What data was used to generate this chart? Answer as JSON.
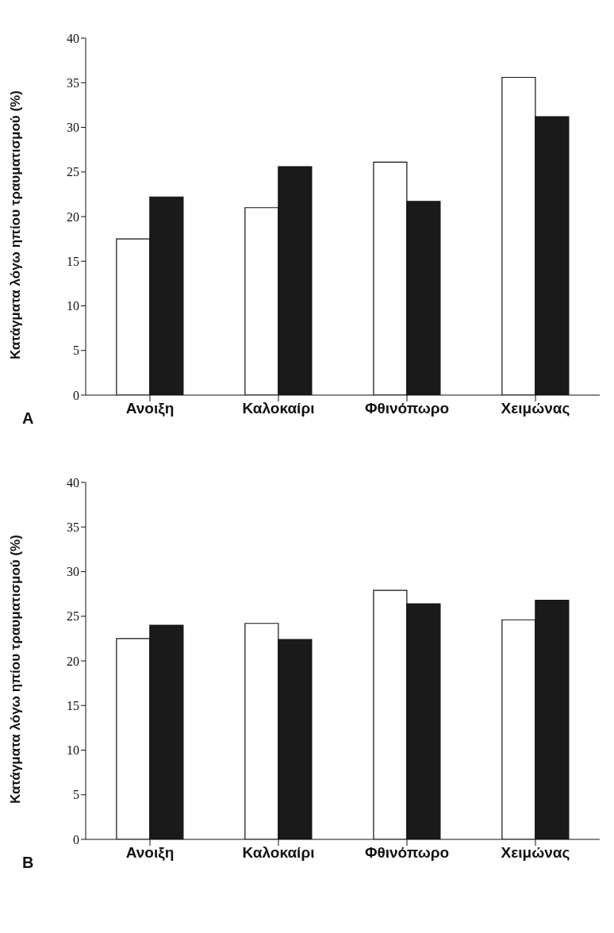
{
  "chart_data": [
    {
      "type": "bar",
      "ylabel": "Κατάγματα λόγω ηπίου τραυματισμού (%)",
      "annotations": [
        "A"
      ],
      "categories": [
        "Ανοιξη",
        "Καλοκαίρι",
        "Φθινόπωρο",
        "Χειμώνας"
      ],
      "series": [
        {
          "color": "#ffffff",
          "values": [
            17.5,
            21.0,
            26.1,
            35.6
          ]
        },
        {
          "color": "#1a1a1a",
          "values": [
            22.2,
            25.6,
            21.7,
            31.2
          ]
        }
      ],
      "ylim": [
        0,
        40
      ],
      "yticks": [
        0,
        5,
        10,
        15,
        20,
        25,
        30,
        35,
        40
      ],
      "grid": false,
      "legend": false
    },
    {
      "type": "bar",
      "ylabel": "Κατάγματα λόγω ηπίου τραυματισμού (%)",
      "annotations": [
        "B"
      ],
      "categories": [
        "Ανοιξη",
        "Καλοκαίρι",
        "Φθινόπωρο",
        "Χειμώνας"
      ],
      "series": [
        {
          "color": "#ffffff",
          "values": [
            22.5,
            24.2,
            27.9,
            24.6
          ]
        },
        {
          "color": "#1a1a1a",
          "values": [
            24.0,
            22.4,
            26.4,
            26.8
          ]
        }
      ],
      "ylim": [
        0,
        40
      ],
      "yticks": [
        0,
        5,
        10,
        15,
        20,
        25,
        30,
        35,
        40
      ],
      "grid": false,
      "legend": false
    }
  ]
}
